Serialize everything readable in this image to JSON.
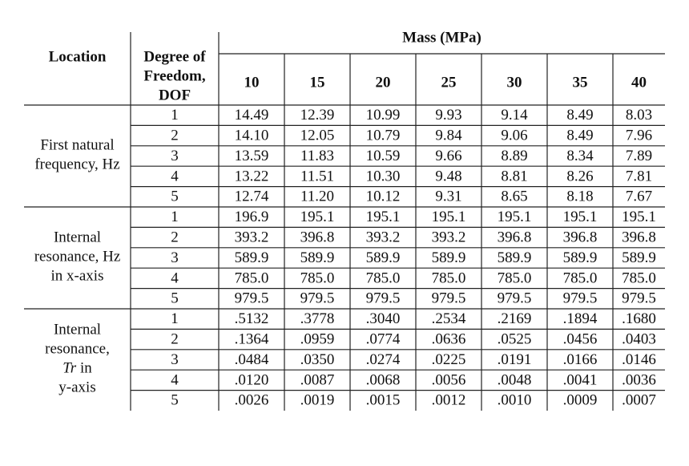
{
  "table": {
    "header": {
      "location": "Location",
      "dof": [
        "Degree of",
        "Freedom,",
        "DOF"
      ],
      "group": "Mass (MPa)",
      "columns": [
        "10",
        "15",
        "20",
        "25",
        "30",
        "35",
        "40"
      ]
    },
    "groups": [
      {
        "label": [
          [
            "First natural"
          ],
          [
            "frequency, Hz"
          ]
        ],
        "rows": [
          {
            "dof": "1",
            "values": [
              "14.49",
              "12.39",
              "10.99",
              "9.93",
              "9.14",
              "8.49",
              "8.03"
            ]
          },
          {
            "dof": "2",
            "values": [
              "14.10",
              "12.05",
              "10.79",
              "9.84",
              "9.06",
              "8.49",
              "7.96"
            ]
          },
          {
            "dof": "3",
            "values": [
              "13.59",
              "11.83",
              "10.59",
              "9.66",
              "8.89",
              "8.34",
              "7.89"
            ]
          },
          {
            "dof": "4",
            "values": [
              "13.22",
              "11.51",
              "10.30",
              "9.48",
              "8.81",
              "8.26",
              "7.81"
            ]
          },
          {
            "dof": "5",
            "values": [
              "12.74",
              "11.20",
              "10.12",
              "9.31",
              "8.65",
              "8.18",
              "7.67"
            ]
          }
        ]
      },
      {
        "label": [
          [
            "Internal"
          ],
          [
            "resonance, Hz"
          ],
          [
            "in x-axis"
          ]
        ],
        "rows": [
          {
            "dof": "1",
            "values": [
              "196.9",
              "195.1",
              "195.1",
              "195.1",
              "195.1",
              "195.1",
              "195.1"
            ]
          },
          {
            "dof": "2",
            "values": [
              "393.2",
              "396.8",
              "393.2",
              "393.2",
              "396.8",
              "396.8",
              "396.8"
            ]
          },
          {
            "dof": "3",
            "values": [
              "589.9",
              "589.9",
              "589.9",
              "589.9",
              "589.9",
              "589.9",
              "589.9"
            ]
          },
          {
            "dof": "4",
            "values": [
              "785.0",
              "785.0",
              "785.0",
              "785.0",
              "785.0",
              "785.0",
              "785.0"
            ]
          },
          {
            "dof": "5",
            "values": [
              "979.5",
              "979.5",
              "979.5",
              "979.5",
              "979.5",
              "979.5",
              "979.5"
            ]
          }
        ]
      },
      {
        "label": [
          [
            "Internal"
          ],
          [
            "resonance,"
          ],
          [
            {
              "text": "Tr",
              "italic": true
            },
            "in"
          ],
          [
            "y-axis"
          ]
        ],
        "rows": [
          {
            "dof": "1",
            "values": [
              ".5132",
              ".3778",
              ".3040",
              ".2534",
              ".2169",
              ".1894",
              ".1680"
            ]
          },
          {
            "dof": "2",
            "values": [
              ".1364",
              ".0959",
              ".0774",
              ".0636",
              ".0525",
              ".0456",
              ".0403"
            ]
          },
          {
            "dof": "3",
            "values": [
              ".0484",
              ".0350",
              ".0274",
              ".0225",
              ".0191",
              ".0166",
              ".0146"
            ]
          },
          {
            "dof": "4",
            "values": [
              ".0120",
              ".0087",
              ".0068",
              ".0056",
              ".0048",
              ".0041",
              ".0036"
            ]
          },
          {
            "dof": "5",
            "values": [
              ".0026",
              ".0019",
              ".0015",
              ".0012",
              ".0010",
              ".0009",
              ".0007"
            ]
          }
        ]
      }
    ]
  }
}
